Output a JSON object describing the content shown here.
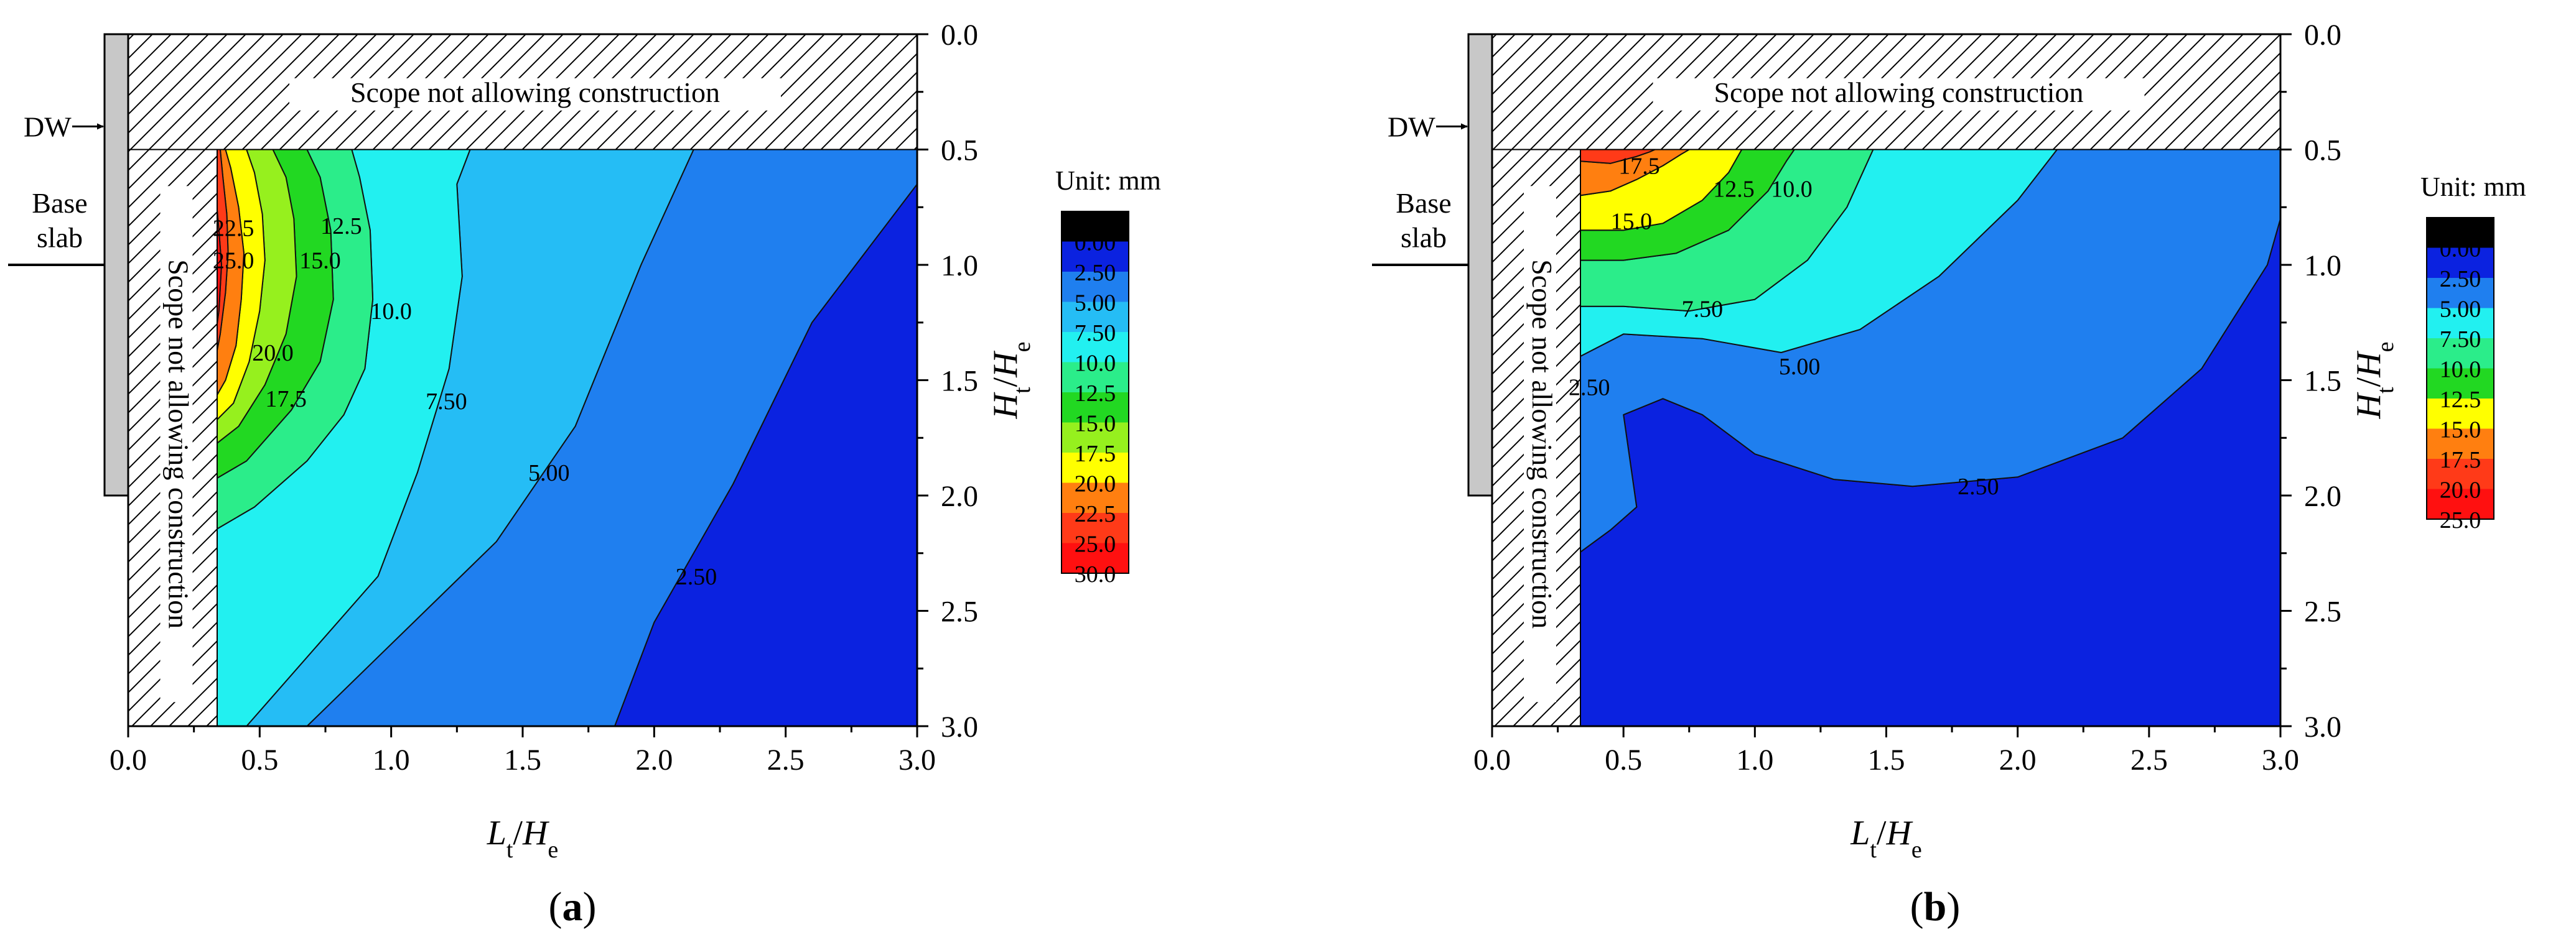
{
  "figure": {
    "panel_labels": [
      "a",
      "b"
    ]
  },
  "chart_data": [
    {
      "type": "contour",
      "panel": "a",
      "title": "",
      "xlabel": {
        "main": "L",
        "sub": "t",
        "sep": "/",
        "main2": "H",
        "sub2": "e"
      },
      "ylabel": {
        "main": "H",
        "sub": "t",
        "sep": "/",
        "main2": "H",
        "sub2": "e"
      },
      "xlim": [
        0,
        3
      ],
      "ylim": [
        3,
        0
      ],
      "xticks": [
        "0.0",
        "0.5",
        "1.0",
        "1.5",
        "2.0",
        "2.5",
        "3.0"
      ],
      "yticks": [
        "0.0",
        "0.5",
        "1.0",
        "1.5",
        "2.0",
        "2.5",
        "3.0"
      ],
      "annotations": {
        "top_region": "Scope not allowing construction",
        "left_region": "Scope not allowing construction",
        "wall": "DW",
        "base_slab": [
          "Base",
          "slab"
        ]
      },
      "colorbar": {
        "title": "Unit: mm",
        "labels": [
          "0.00",
          "2.50",
          "5.00",
          "7.50",
          "10.0",
          "12.5",
          "15.0",
          "17.5",
          "20.0",
          "22.5",
          "25.0",
          "30.0"
        ],
        "colors": [
          "#000000",
          "#0b22e0",
          "#1f7fef",
          "#25bdf5",
          "#22f0f0",
          "#2bed8a",
          "#22d822",
          "#96f01e",
          "#ffff00",
          "#ff7f10",
          "#ff3a18",
          "#ff1010"
        ]
      },
      "bands": [
        {
          "range": "0-2.5",
          "color": "#0b22e0",
          "x": [
            1.85,
            2.0,
            2.3,
            2.6,
            3.0,
            3.0
          ],
          "y": [
            3.0,
            2.55,
            1.95,
            1.25,
            0.65,
            3.0
          ]
        },
        {
          "range": "2.5-5",
          "color": "#1f7fef",
          "x": [
            0.68,
            1.4,
            1.7,
            1.95,
            2.15,
            2.6,
            3.0,
            3.0,
            2.6,
            2.3,
            2.0,
            1.85
          ],
          "y": [
            3.0,
            2.2,
            1.7,
            1.0,
            0.5,
            0.5,
            0.5,
            0.65,
            1.25,
            1.95,
            2.55,
            3.0
          ]
        },
        {
          "range": "5-7.5",
          "color": "#25bdf5",
          "x": [
            0.45,
            0.95,
            1.1,
            1.22,
            1.27,
            1.25,
            1.3,
            2.15,
            1.95,
            1.7,
            1.4,
            0.68
          ],
          "y": [
            3.0,
            2.35,
            1.9,
            1.45,
            1.05,
            0.65,
            0.5,
            0.5,
            1.0,
            1.7,
            2.2,
            3.0
          ]
        },
        {
          "range": "7.5-10",
          "color": "#22f0f0",
          "x": [
            0.33,
            0.33,
            0.48,
            0.68,
            0.82,
            0.9,
            0.93,
            0.92,
            0.88,
            0.85,
            1.3,
            1.25,
            1.27,
            1.22,
            1.1,
            0.95,
            0.45
          ],
          "y": [
            3.0,
            2.15,
            2.05,
            1.85,
            1.65,
            1.45,
            1.15,
            0.85,
            0.62,
            0.5,
            0.5,
            0.65,
            1.05,
            1.45,
            1.9,
            2.35,
            3.0
          ]
        },
        {
          "range": "10-12.5",
          "color": "#2bed8a",
          "x": [
            0.33,
            0.33,
            0.45,
            0.62,
            0.73,
            0.78,
            0.77,
            0.73,
            0.68,
            0.85,
            0.88,
            0.92,
            0.93,
            0.9,
            0.82,
            0.68,
            0.48
          ],
          "y": [
            2.15,
            1.93,
            1.85,
            1.63,
            1.42,
            1.15,
            0.85,
            0.62,
            0.5,
            0.5,
            0.62,
            0.85,
            1.15,
            1.45,
            1.65,
            1.85,
            2.05
          ]
        },
        {
          "range": "12.5-15",
          "color": "#22d822",
          "x": [
            0.33,
            0.33,
            0.42,
            0.52,
            0.6,
            0.64,
            0.63,
            0.6,
            0.55,
            0.68,
            0.73,
            0.77,
            0.78,
            0.73,
            0.62,
            0.45
          ],
          "y": [
            1.93,
            1.78,
            1.7,
            1.52,
            1.3,
            1.05,
            0.8,
            0.62,
            0.5,
            0.5,
            0.62,
            0.85,
            1.15,
            1.42,
            1.63,
            1.85
          ]
        },
        {
          "range": "15-17.5",
          "color": "#96f01e",
          "x": [
            0.33,
            0.33,
            0.4,
            0.46,
            0.5,
            0.52,
            0.51,
            0.48,
            0.45,
            0.55,
            0.6,
            0.63,
            0.64,
            0.6,
            0.52,
            0.42
          ],
          "y": [
            1.78,
            1.68,
            1.6,
            1.42,
            1.2,
            0.98,
            0.78,
            0.6,
            0.5,
            0.5,
            0.62,
            0.8,
            1.05,
            1.3,
            1.52,
            1.7
          ]
        },
        {
          "range": "17.5-20",
          "color": "#ffff00",
          "x": [
            0.33,
            0.33,
            0.37,
            0.41,
            0.43,
            0.44,
            0.42,
            0.39,
            0.37,
            0.45,
            0.48,
            0.51,
            0.52,
            0.5,
            0.46,
            0.4
          ],
          "y": [
            1.68,
            1.58,
            1.5,
            1.35,
            1.15,
            0.95,
            0.75,
            0.58,
            0.5,
            0.5,
            0.6,
            0.78,
            0.98,
            1.2,
            1.42,
            1.6
          ]
        },
        {
          "range": "20-22.5",
          "color": "#ff7f10",
          "x": [
            0.33,
            0.33,
            0.35,
            0.37,
            0.38,
            0.375,
            0.36,
            0.35,
            0.37,
            0.39,
            0.42,
            0.44,
            0.43,
            0.41,
            0.37
          ],
          "y": [
            1.58,
            1.42,
            1.3,
            1.12,
            0.95,
            0.78,
            0.62,
            0.5,
            0.5,
            0.58,
            0.75,
            0.95,
            1.15,
            1.35,
            1.5
          ]
        },
        {
          "range": "22.5-25",
          "color": "#ff3a18",
          "x": [
            0.33,
            0.33,
            0.345,
            0.355,
            0.345,
            0.335,
            0.33,
            0.35,
            0.36,
            0.375,
            0.38,
            0.37,
            0.35
          ],
          "y": [
            1.42,
            1.32,
            1.2,
            1.0,
            0.85,
            0.72,
            0.5,
            0.5,
            0.62,
            0.78,
            0.95,
            1.12,
            1.3
          ]
        },
        {
          "range": "25-30",
          "color": "#ff1010",
          "x": [
            0.33,
            0.33,
            0.335,
            0.345,
            0.355,
            0.345
          ],
          "y": [
            1.32,
            0.72,
            0.72,
            0.85,
            1.0,
            1.2
          ]
        }
      ],
      "contour_labels": [
        {
          "text": "22.5",
          "x": 0.4,
          "y": 0.84
        },
        {
          "text": "25.0",
          "x": 0.4,
          "y": 0.98
        },
        {
          "text": "12.5",
          "x": 0.81,
          "y": 0.83
        },
        {
          "text": "15.0",
          "x": 0.73,
          "y": 0.98
        },
        {
          "text": "10.0",
          "x": 1.0,
          "y": 1.2
        },
        {
          "text": "20.0",
          "x": 0.55,
          "y": 1.38
        },
        {
          "text": "17.5",
          "x": 0.6,
          "y": 1.58
        },
        {
          "text": "7.50",
          "x": 1.21,
          "y": 1.59
        },
        {
          "text": "5.00",
          "x": 1.6,
          "y": 1.9
        },
        {
          "text": "2.50",
          "x": 2.16,
          "y": 2.35
        }
      ]
    },
    {
      "type": "contour",
      "panel": "b",
      "title": "",
      "xlabel": {
        "main": "L",
        "sub": "t",
        "sep": "/",
        "main2": "H",
        "sub2": "e"
      },
      "ylabel": {
        "main": "H",
        "sub": "t",
        "sep": "/",
        "main2": "H",
        "sub2": "e"
      },
      "xlim": [
        0,
        3
      ],
      "ylim": [
        3,
        0
      ],
      "xticks": [
        "0.0",
        "0.5",
        "1.0",
        "1.5",
        "2.0",
        "2.5",
        "3.0"
      ],
      "yticks": [
        "0.0",
        "0.5",
        "1.0",
        "1.5",
        "2.0",
        "2.5",
        "3.0"
      ],
      "annotations": {
        "top_region": "Scope not allowing construction",
        "left_region": "Scope not allowing construction",
        "wall": "DW",
        "base_slab": [
          "Base",
          "slab"
        ]
      },
      "colorbar": {
        "title": "Unit: mm",
        "labels": [
          "0.00",
          "2.50",
          "5.00",
          "7.50",
          "10.0",
          "12.5",
          "15.0",
          "17.5",
          "20.0",
          "25.0"
        ],
        "colors": [
          "#000000",
          "#0b22e0",
          "#1f7fef",
          "#22f0f0",
          "#2bed8a",
          "#22d822",
          "#ffff00",
          "#ff7f10",
          "#ff3a18",
          "#ff1010"
        ]
      },
      "bands": [
        {
          "range": "0-2.5",
          "color": "#0b22e0",
          "x": [
            0.33,
            0.33,
            0.45,
            0.55,
            0.5,
            0.65,
            0.8,
            1.0,
            1.3,
            1.6,
            2.0,
            2.4,
            2.7,
            2.95,
            3.0,
            3.0
          ],
          "y": [
            3.0,
            2.25,
            2.15,
            2.05,
            1.65,
            1.58,
            1.65,
            1.82,
            1.93,
            1.96,
            1.92,
            1.75,
            1.45,
            1.0,
            0.8,
            3.0
          ]
        },
        {
          "range": "2.5-5",
          "color": "#1f7fef",
          "x": [
            0.33,
            0.33,
            0.5,
            0.8,
            1.1,
            1.4,
            1.7,
            2.0,
            2.15,
            3.0,
            3.0,
            2.95,
            2.7,
            2.4,
            2.0,
            1.6,
            1.3,
            1.0,
            0.8,
            0.65,
            0.5,
            0.55,
            0.45
          ],
          "y": [
            2.25,
            1.4,
            1.3,
            1.32,
            1.38,
            1.28,
            1.05,
            0.72,
            0.5,
            0.5,
            0.8,
            1.0,
            1.45,
            1.75,
            1.92,
            1.96,
            1.93,
            1.82,
            1.65,
            1.58,
            1.65,
            2.05,
            2.15
          ]
        },
        {
          "range": "5-7.5",
          "color": "#22f0f0",
          "x": [
            0.33,
            0.33,
            0.5,
            0.75,
            1.0,
            1.2,
            1.35,
            1.45,
            2.15,
            2.0,
            1.7,
            1.4,
            1.1,
            0.8,
            0.5
          ],
          "y": [
            1.4,
            1.18,
            1.18,
            1.2,
            1.15,
            0.98,
            0.75,
            0.5,
            0.5,
            0.72,
            1.05,
            1.28,
            1.38,
            1.32,
            1.3
          ]
        },
        {
          "range": "7.5-10",
          "color": "#2bed8a",
          "x": [
            0.33,
            0.33,
            0.5,
            0.7,
            0.9,
            1.05,
            1.12,
            1.15,
            1.45,
            1.35,
            1.2,
            1.0,
            0.75,
            0.5
          ],
          "y": [
            1.18,
            0.98,
            0.98,
            0.95,
            0.85,
            0.68,
            0.55,
            0.5,
            0.5,
            0.75,
            0.98,
            1.15,
            1.2,
            1.18
          ]
        },
        {
          "range": "10-12.5",
          "color": "#22d822",
          "x": [
            0.33,
            0.33,
            0.5,
            0.65,
            0.8,
            0.9,
            0.95,
            1.15,
            1.12,
            1.05,
            0.9,
            0.7,
            0.5
          ],
          "y": [
            0.98,
            0.85,
            0.85,
            0.82,
            0.72,
            0.6,
            0.5,
            0.5,
            0.55,
            0.68,
            0.85,
            0.95,
            0.98
          ]
        },
        {
          "range": "12.5-15",
          "color": "#ffff00",
          "x": [
            0.33,
            0.33,
            0.45,
            0.55,
            0.65,
            0.72,
            0.75,
            0.95,
            0.9,
            0.8,
            0.65,
            0.5
          ],
          "y": [
            0.85,
            0.7,
            0.68,
            0.63,
            0.57,
            0.52,
            0.5,
            0.5,
            0.6,
            0.72,
            0.82,
            0.85
          ]
        },
        {
          "range": "15-17.5",
          "color": "#ff7f10",
          "x": [
            0.33,
            0.33,
            0.45,
            0.55,
            0.6,
            0.62,
            0.75,
            0.72,
            0.65,
            0.55,
            0.45
          ],
          "y": [
            0.7,
            0.55,
            0.56,
            0.53,
            0.51,
            0.5,
            0.5,
            0.52,
            0.57,
            0.63,
            0.68
          ]
        },
        {
          "range": "17.5-20",
          "color": "#ff3a18",
          "x": [
            0.33,
            0.33,
            0.62,
            0.6,
            0.55,
            0.45
          ],
          "y": [
            0.55,
            0.5,
            0.5,
            0.51,
            0.53,
            0.56
          ]
        }
      ],
      "contour_labels": [
        {
          "text": "17.5",
          "x": 0.56,
          "y": 0.57
        },
        {
          "text": "12.5",
          "x": 0.92,
          "y": 0.67
        },
        {
          "text": "10.0",
          "x": 1.14,
          "y": 0.67
        },
        {
          "text": "15.0",
          "x": 0.53,
          "y": 0.81
        },
        {
          "text": "7.50",
          "x": 0.8,
          "y": 1.19
        },
        {
          "text": "5.00",
          "x": 1.17,
          "y": 1.44
        },
        {
          "text": "2.50",
          "x": 0.37,
          "y": 1.53
        },
        {
          "text": "2.50",
          "x": 1.85,
          "y": 1.96
        }
      ]
    }
  ]
}
